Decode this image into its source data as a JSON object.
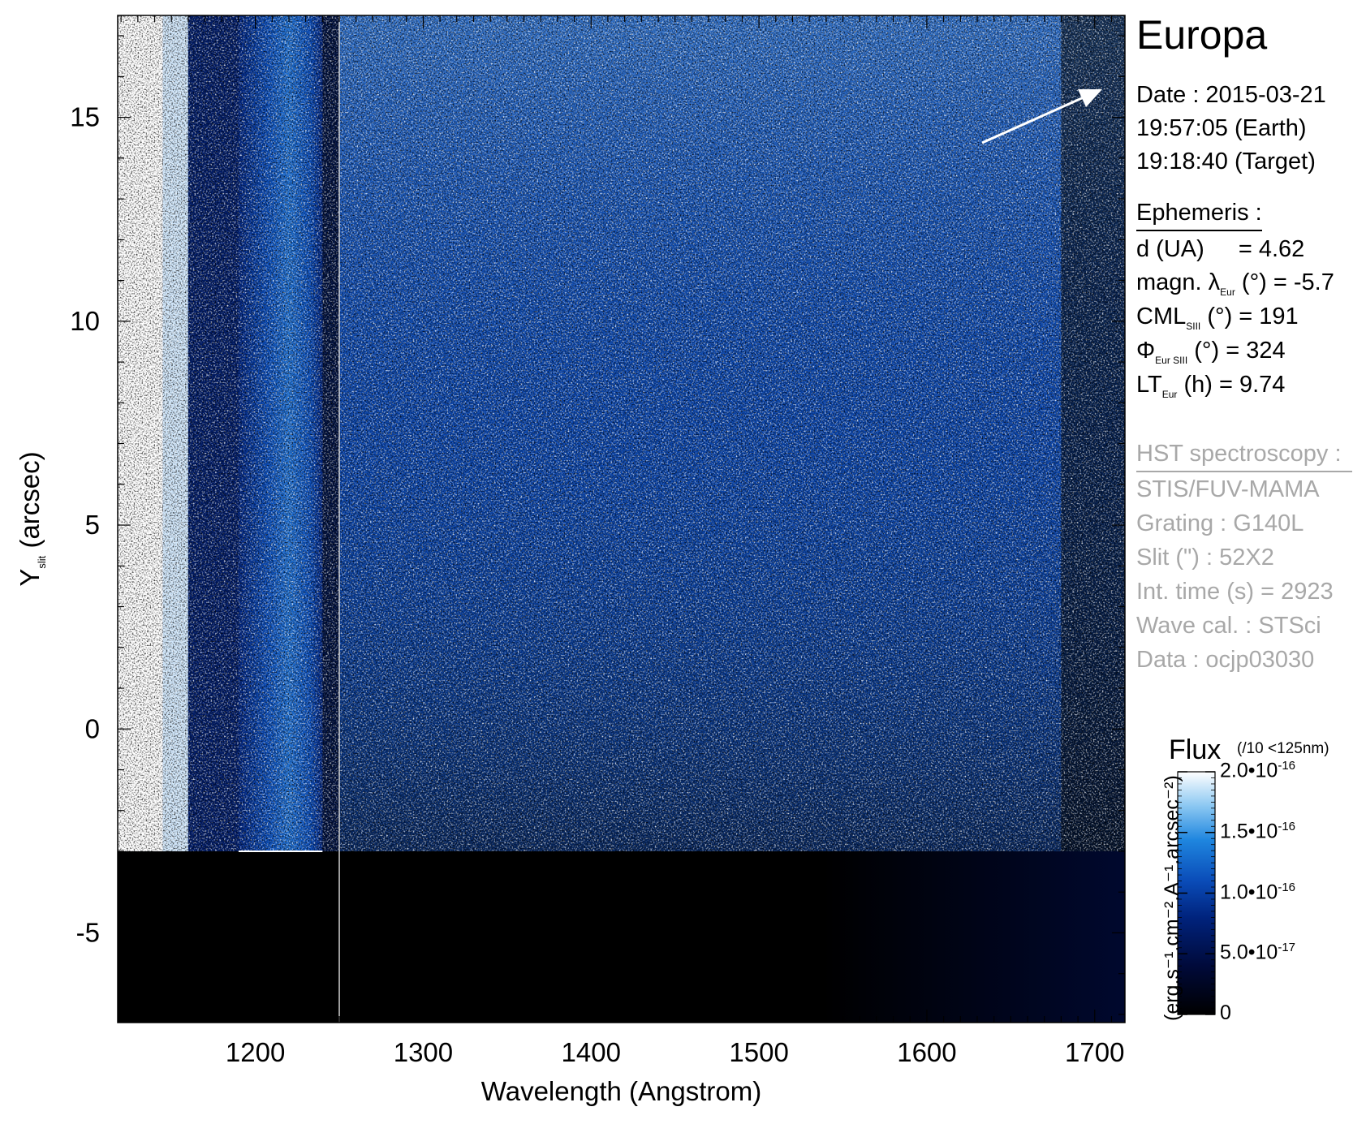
{
  "chart_data": {
    "type": "heatmap",
    "title": "",
    "xlabel": "Wavelength (Angstrom)",
    "ylabel_main": "Y",
    "ylabel_sub": "slit",
    "ylabel_unit": "(arcsec)",
    "xlim": [
      1118,
      1718
    ],
    "ylim": [
      -7.2,
      17.5
    ],
    "x_ticks": [
      1200,
      1300,
      1400,
      1500,
      1600,
      1700
    ],
    "y_ticks": [
      -5,
      0,
      5,
      10,
      15
    ],
    "x_tick_labels": [
      "1200",
      "1300",
      "1400",
      "1500",
      "1600",
      "1700"
    ],
    "y_tick_labels": [
      "-5",
      "0",
      "5",
      "10",
      "15"
    ],
    "slit_lower_edge": -3.0,
    "detector_gap_x": 1250,
    "colormap": [
      "#000000",
      "#000a3a",
      "#00237d",
      "#0a4cb8",
      "#1f86df",
      "#8cc8f2",
      "#ffffff"
    ],
    "colorbar": {
      "title": "Flux",
      "note": "(/10 <125nm)",
      "unit": "(erg.s⁻¹.cm⁻².A⁻¹.arcsec⁻²)",
      "range": [
        0,
        2e-16
      ],
      "tick_values": [
        0,
        5e-17,
        1e-16,
        1.5e-16,
        2e-16
      ],
      "tick_labels": [
        {
          "mantissa": "0",
          "exp": ""
        },
        {
          "mantissa": "5.0•10",
          "exp": "-17"
        },
        {
          "mantissa": "1.0•10",
          "exp": "-16"
        },
        {
          "mantissa": "1.5•10",
          "exp": "-16"
        },
        {
          "mantissa": "2.0•10",
          "exp": "-16"
        }
      ]
    }
  },
  "side_panel": {
    "target": "Europa",
    "date_line": "Date : 2015-03-21",
    "earth_time": "19:57:05 (Earth)",
    "target_time": "19:18:40 (Target)",
    "ephemeris_header": "Ephemeris :",
    "distance": {
      "label": "d (UA)",
      "value": "= 4.62"
    },
    "lambda": {
      "prefix": "magn. λ",
      "sub": "Eur",
      "suffix": "(°)",
      "value": "= -5.7"
    },
    "cml": {
      "prefix": "CML",
      "sub": "SIII",
      "suffix": "(°)",
      "value": "= 191"
    },
    "phi": {
      "prefix": "Φ",
      "sub": "Eur SIII",
      "suffix": "(°)",
      "value": "= 324"
    },
    "lt": {
      "prefix": "LT",
      "sub": "Eur",
      "suffix": "(h)",
      "value": "= 9.74"
    },
    "hst_header": "HST spectroscopy :",
    "instrument": "STIS/FUV-MAMA",
    "grating": "Grating : G140L",
    "slit": "Slit (\") : 52X2",
    "int_time": "Int. time (s) = 2923",
    "wave_cal": "Wave cal. : STSci",
    "dataset": "Data : ocjp03030"
  }
}
